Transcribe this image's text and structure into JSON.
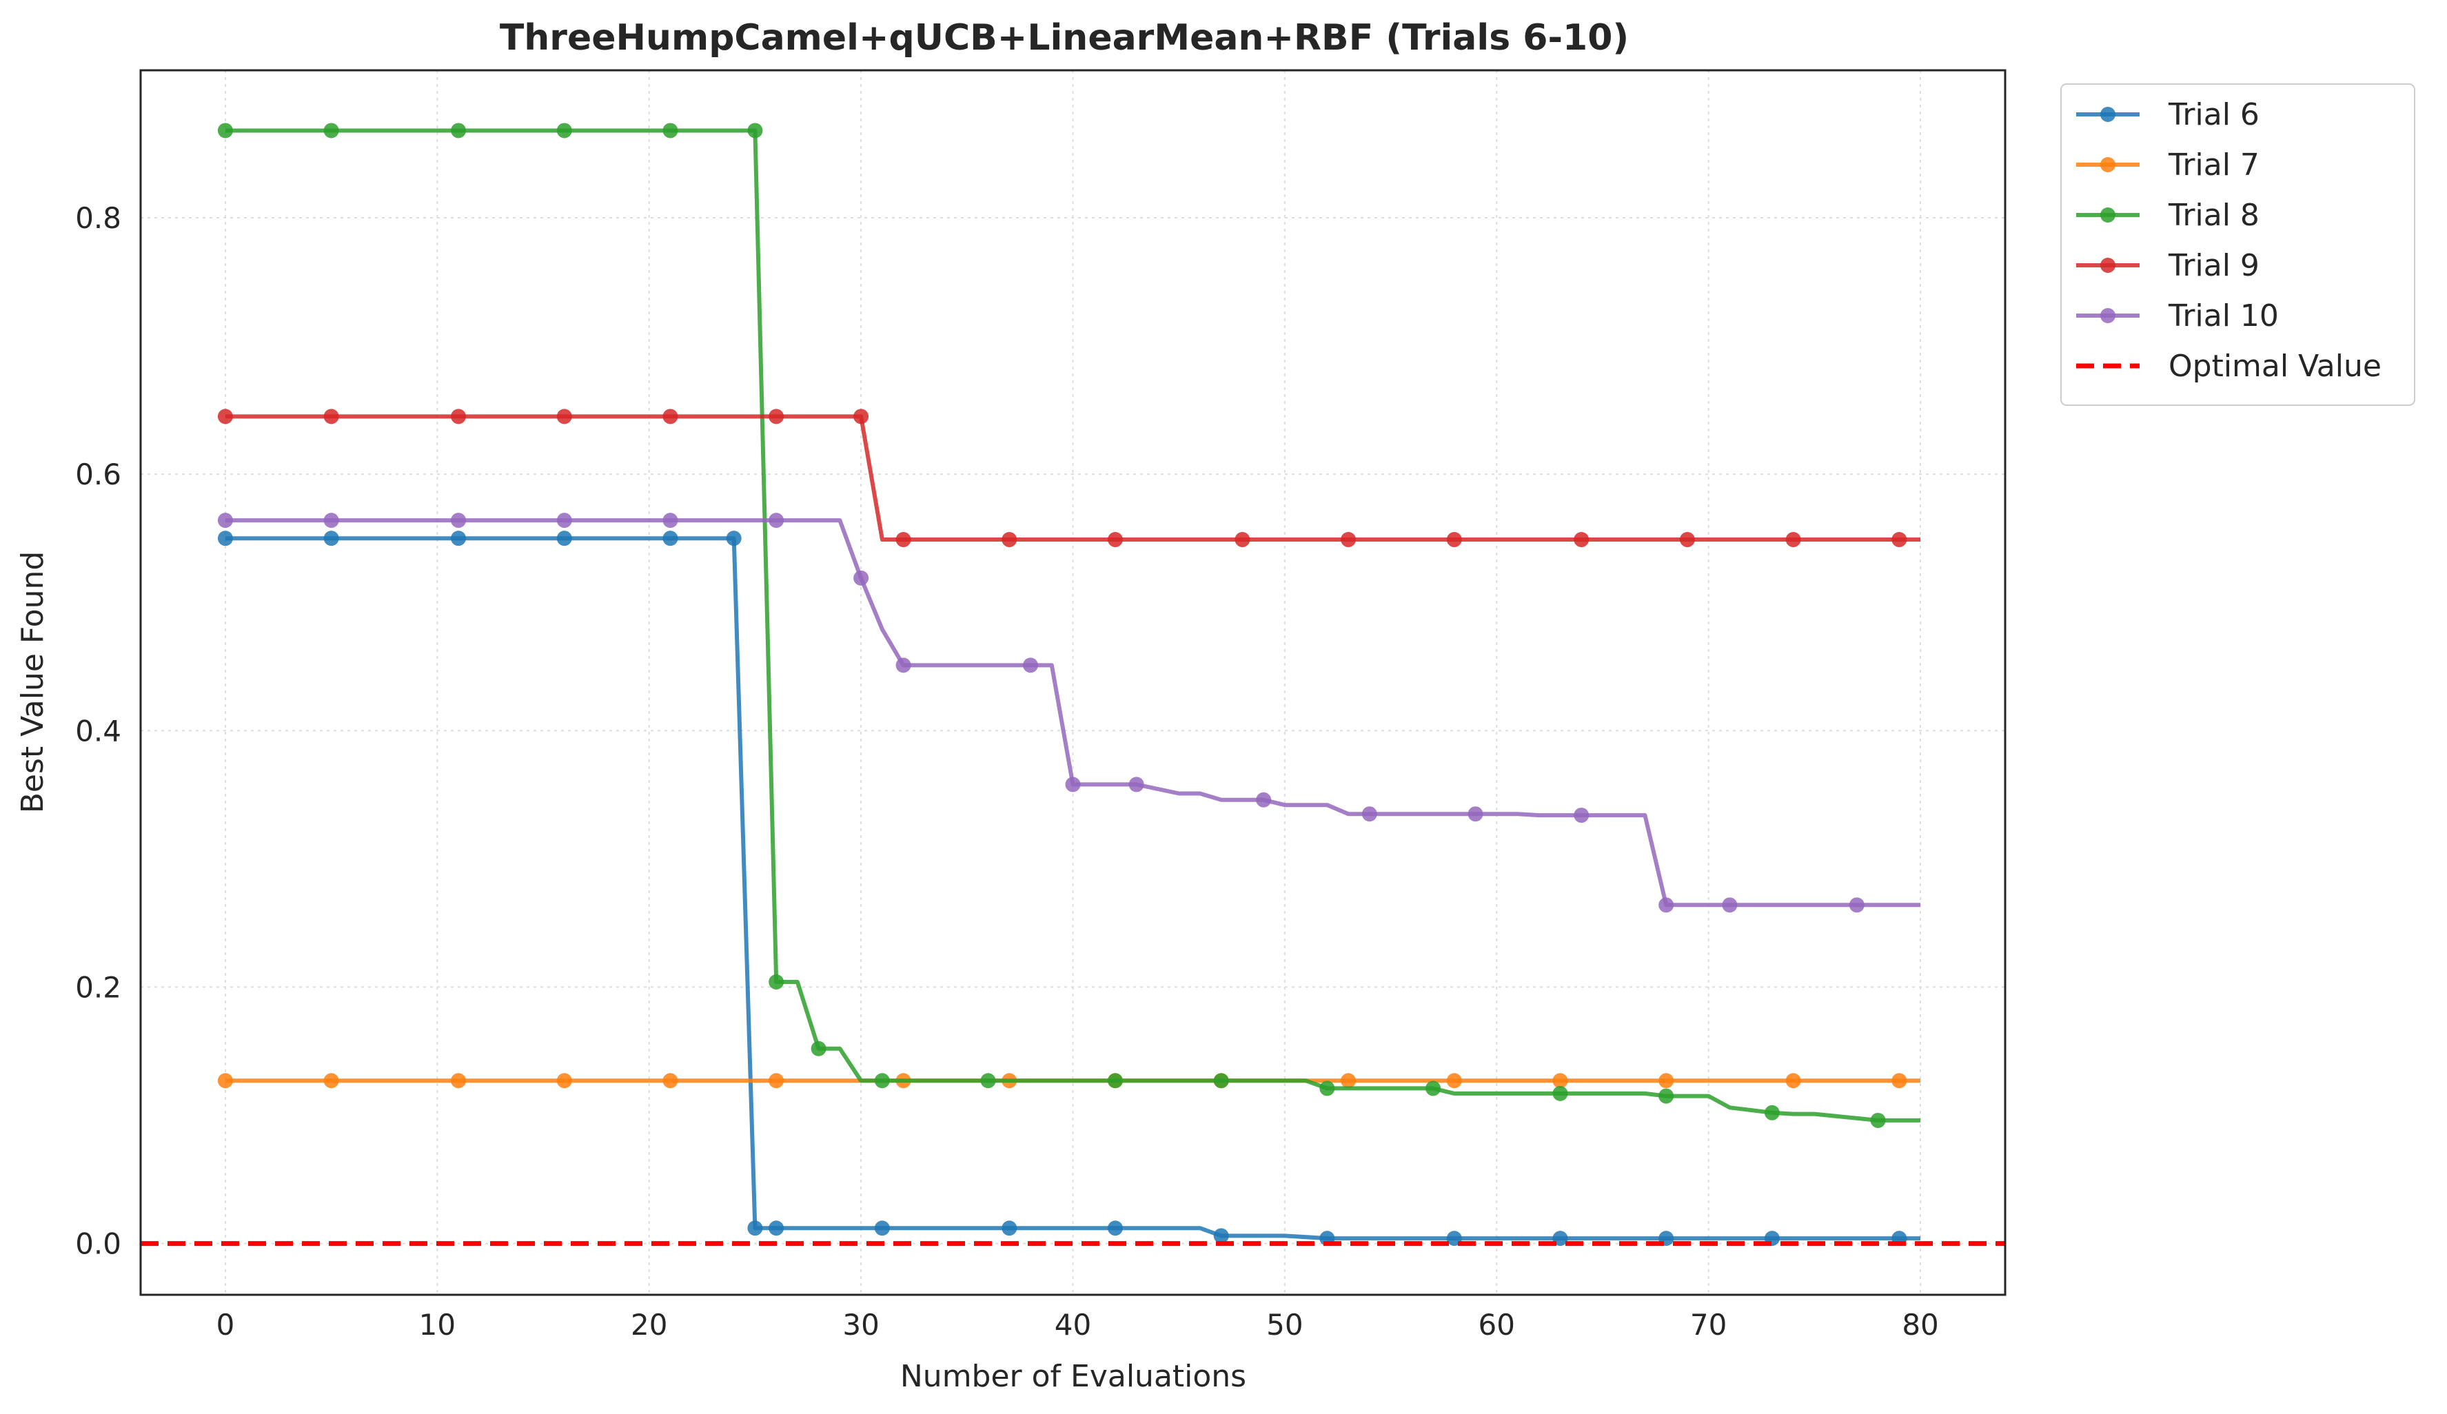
{
  "chart_data": {
    "type": "line",
    "title": "ThreeHumpCamel+qUCB+LinearMean+RBF (Trials 6-10)",
    "xlabel": "Number of Evaluations",
    "ylabel": "Best Value Found",
    "xlim": [
      -4,
      84
    ],
    "ylim": [
      -0.04,
      0.915
    ],
    "xticks": [
      0,
      10,
      20,
      30,
      40,
      50,
      60,
      70,
      80
    ],
    "xtick_labels": [
      "0",
      "10",
      "20",
      "30",
      "40",
      "50",
      "60",
      "70",
      "80"
    ],
    "yticks": [
      0.0,
      0.2,
      0.4,
      0.6,
      0.8
    ],
    "ytick_labels": [
      "0.0",
      "0.2",
      "0.4",
      "0.6",
      "0.8"
    ],
    "grid": true,
    "legend_position": "outside-top-right",
    "series": [
      {
        "name": "Trial 6",
        "color": "#1f77b4",
        "line": [
          [
            0,
            0.55
          ],
          [
            24,
            0.55
          ],
          [
            25,
            0.012
          ],
          [
            46,
            0.012
          ],
          [
            47,
            0.006
          ],
          [
            50,
            0.006
          ],
          [
            52,
            0.004
          ],
          [
            80,
            0.004
          ]
        ],
        "markers": [
          [
            0,
            0.55
          ],
          [
            5,
            0.55
          ],
          [
            11,
            0.55
          ],
          [
            16,
            0.55
          ],
          [
            21,
            0.55
          ],
          [
            24,
            0.55
          ],
          [
            25,
            0.012
          ],
          [
            26,
            0.012
          ],
          [
            31,
            0.012
          ],
          [
            37,
            0.012
          ],
          [
            42,
            0.012
          ],
          [
            47,
            0.006
          ],
          [
            52,
            0.004
          ],
          [
            58,
            0.004
          ],
          [
            63,
            0.004
          ],
          [
            68,
            0.004
          ],
          [
            73,
            0.004
          ],
          [
            79,
            0.004
          ]
        ]
      },
      {
        "name": "Trial 7",
        "color": "#ff7f0e",
        "line": [
          [
            0,
            0.127
          ],
          [
            80,
            0.127
          ]
        ],
        "markers": [
          [
            0,
            0.127
          ],
          [
            5,
            0.127
          ],
          [
            11,
            0.127
          ],
          [
            16,
            0.127
          ],
          [
            21,
            0.127
          ],
          [
            26,
            0.127
          ],
          [
            32,
            0.127
          ],
          [
            37,
            0.127
          ],
          [
            42,
            0.127
          ],
          [
            47,
            0.127
          ],
          [
            53,
            0.127
          ],
          [
            58,
            0.127
          ],
          [
            63,
            0.127
          ],
          [
            68,
            0.127
          ],
          [
            74,
            0.127
          ],
          [
            79,
            0.127
          ]
        ]
      },
      {
        "name": "Trial 8",
        "color": "#2ca02c",
        "line": [
          [
            0,
            0.868
          ],
          [
            25,
            0.868
          ],
          [
            26,
            0.204
          ],
          [
            27,
            0.204
          ],
          [
            28,
            0.152
          ],
          [
            29,
            0.152
          ],
          [
            30,
            0.127
          ],
          [
            51,
            0.127
          ],
          [
            52,
            0.121
          ],
          [
            57,
            0.121
          ],
          [
            58,
            0.117
          ],
          [
            67,
            0.117
          ],
          [
            68,
            0.115
          ],
          [
            70,
            0.115
          ],
          [
            71,
            0.106
          ],
          [
            73,
            0.102
          ],
          [
            74,
            0.101
          ],
          [
            75,
            0.101
          ],
          [
            78,
            0.096
          ],
          [
            80,
            0.096
          ]
        ],
        "markers": [
          [
            0,
            0.868
          ],
          [
            5,
            0.868
          ],
          [
            11,
            0.868
          ],
          [
            16,
            0.868
          ],
          [
            21,
            0.868
          ],
          [
            25,
            0.868
          ],
          [
            26,
            0.204
          ],
          [
            28,
            0.152
          ],
          [
            31,
            0.127
          ],
          [
            36,
            0.127
          ],
          [
            42,
            0.127
          ],
          [
            47,
            0.127
          ],
          [
            52,
            0.121
          ],
          [
            57,
            0.121
          ],
          [
            63,
            0.117
          ],
          [
            68,
            0.115
          ],
          [
            73,
            0.102
          ],
          [
            78,
            0.096
          ]
        ]
      },
      {
        "name": "Trial 9",
        "color": "#d62728",
        "line": [
          [
            0,
            0.645
          ],
          [
            30,
            0.645
          ],
          [
            31,
            0.549
          ],
          [
            80,
            0.549
          ]
        ],
        "markers": [
          [
            0,
            0.645
          ],
          [
            5,
            0.645
          ],
          [
            11,
            0.645
          ],
          [
            16,
            0.645
          ],
          [
            21,
            0.645
          ],
          [
            26,
            0.645
          ],
          [
            30,
            0.645
          ],
          [
            32,
            0.549
          ],
          [
            37,
            0.549
          ],
          [
            42,
            0.549
          ],
          [
            48,
            0.549
          ],
          [
            53,
            0.549
          ],
          [
            58,
            0.549
          ],
          [
            64,
            0.549
          ],
          [
            69,
            0.549
          ],
          [
            74,
            0.549
          ],
          [
            79,
            0.549
          ]
        ]
      },
      {
        "name": "Trial 10",
        "color": "#9467bd",
        "line": [
          [
            0,
            0.564
          ],
          [
            29,
            0.564
          ],
          [
            30,
            0.519
          ],
          [
            31,
            0.479
          ],
          [
            32,
            0.451
          ],
          [
            39,
            0.451
          ],
          [
            40,
            0.358
          ],
          [
            43,
            0.358
          ],
          [
            45,
            0.351
          ],
          [
            46,
            0.351
          ],
          [
            47,
            0.346
          ],
          [
            49,
            0.346
          ],
          [
            50,
            0.342
          ],
          [
            52,
            0.342
          ],
          [
            53,
            0.335
          ],
          [
            61,
            0.335
          ],
          [
            62,
            0.334
          ],
          [
            67,
            0.334
          ],
          [
            68,
            0.264
          ],
          [
            80,
            0.264
          ]
        ],
        "markers": [
          [
            0,
            0.564
          ],
          [
            5,
            0.564
          ],
          [
            11,
            0.564
          ],
          [
            16,
            0.564
          ],
          [
            21,
            0.564
          ],
          [
            26,
            0.564
          ],
          [
            30,
            0.519
          ],
          [
            32,
            0.451
          ],
          [
            38,
            0.451
          ],
          [
            40,
            0.358
          ],
          [
            43,
            0.358
          ],
          [
            49,
            0.346
          ],
          [
            54,
            0.335
          ],
          [
            59,
            0.335
          ],
          [
            64,
            0.334
          ],
          [
            68,
            0.264
          ],
          [
            71,
            0.264
          ],
          [
            77,
            0.264
          ]
        ]
      }
    ],
    "reference_line": {
      "name": "Optimal Value",
      "y": 0.0,
      "color": "#ff0000",
      "style": "dashed"
    }
  }
}
